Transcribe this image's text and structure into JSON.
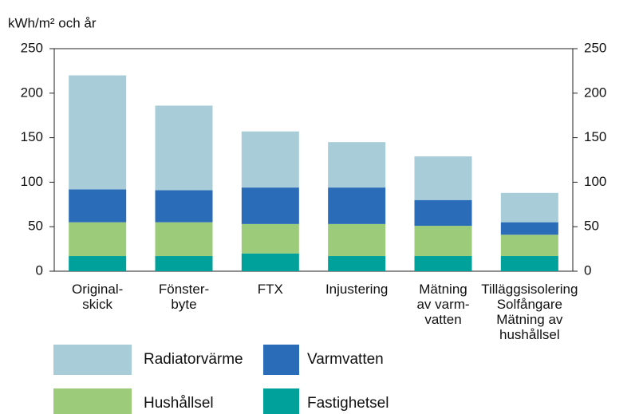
{
  "chart_data": {
    "type": "stacked_bar",
    "y_label": "kWh/m² och år",
    "categories": [
      "Original-\nskick",
      "Fönster-\nbyte",
      "FTX",
      "Injustering",
      "Mätning\nav varm-\nvatten",
      "Tilläggsisolering\nSolfångare\nMätning av\nhushållsel"
    ],
    "series": [
      {
        "name": "Fastighetsel",
        "color": "#00a19a",
        "values": [
          17,
          17,
          20,
          17,
          17,
          17
        ]
      },
      {
        "name": "Hushållsel",
        "color": "#9ccc7a",
        "values": [
          38,
          38,
          33,
          36,
          34,
          24
        ]
      },
      {
        "name": "Varmvatten",
        "color": "#2b6cb8",
        "values": [
          37,
          36,
          41,
          41,
          29,
          14
        ]
      },
      {
        "name": "Radiatorvärme",
        "color": "#a9cdd8",
        "values": [
          128,
          95,
          63,
          51,
          49,
          33
        ]
      }
    ],
    "ylim": [
      0,
      250
    ],
    "yticks": [
      0,
      50,
      100,
      150,
      200,
      250
    ],
    "grid": false
  }
}
